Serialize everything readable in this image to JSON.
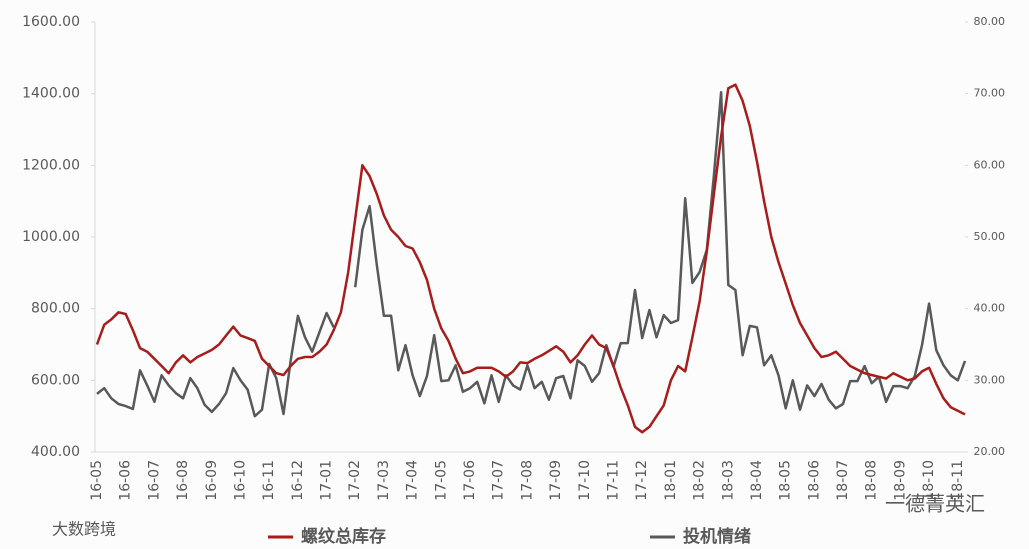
{
  "chart_data": {
    "type": "line",
    "categories": [
      "16-05",
      null,
      null,
      null,
      "16-06",
      null,
      null,
      null,
      "16-07",
      null,
      null,
      null,
      "16-08",
      null,
      null,
      null,
      "16-09",
      null,
      null,
      null,
      "16-10",
      null,
      null,
      null,
      "16-11",
      null,
      null,
      null,
      "16-12",
      null,
      null,
      null,
      "17-01",
      null,
      null,
      null,
      "17-02",
      null,
      null,
      null,
      "17-03",
      null,
      null,
      null,
      "17-04",
      null,
      null,
      null,
      "17-05",
      null,
      null,
      null,
      "17-06",
      null,
      null,
      null,
      "17-07",
      null,
      null,
      null,
      "17-08",
      null,
      null,
      null,
      "17-09",
      null,
      null,
      null,
      "17-10",
      null,
      null,
      null,
      "17-11",
      null,
      null,
      null,
      "17-12",
      null,
      null,
      null,
      "18-01",
      null,
      null,
      null,
      "18-02",
      null,
      null,
      null,
      "18-03",
      null,
      null,
      null,
      "18-04",
      null,
      null,
      null,
      "18-05",
      null,
      null,
      null,
      "18-06",
      null,
      null,
      null,
      "18-07",
      null,
      null,
      null,
      "18-08",
      null,
      null,
      null,
      "18-09",
      null,
      null,
      null,
      "18-10",
      null,
      null,
      null,
      "18-11",
      null
    ],
    "series": [
      {
        "name": "螺纹总库存",
        "color": "#a81c1c",
        "axis": "y",
        "values": [
          700,
          755,
          770,
          790,
          785,
          740,
          690,
          680,
          660,
          640,
          620,
          650,
          670,
          650,
          665,
          675,
          685,
          700,
          725,
          750,
          725,
          718,
          710,
          660,
          640,
          620,
          615,
          640,
          660,
          665,
          665,
          680,
          700,
          740,
          790,
          900,
          1050,
          1200,
          1170,
          1120,
          1060,
          1020,
          1000,
          975,
          968,
          930,
          880,
          800,
          745,
          710,
          660,
          620,
          625,
          635,
          635,
          635,
          625,
          610,
          625,
          650,
          648,
          660,
          670,
          682,
          695,
          680,
          650,
          670,
          700,
          725,
          700,
          690,
          640,
          580,
          530,
          470,
          455,
          470,
          500,
          530,
          600,
          640,
          625,
          720,
          820,
          960,
          1120,
          1280,
          1415,
          1425,
          1380,
          1310,
          1210,
          1100,
          1000,
          930,
          870,
          810,
          760,
          725,
          690,
          665,
          670,
          680,
          660,
          640,
          630,
          620,
          615,
          610,
          605,
          620,
          610,
          600,
          605,
          625,
          635,
          590,
          550,
          525,
          515,
          505
        ]
      },
      {
        "name": "投机情绪",
        "color": "#595959",
        "axis": "y2",
        "values": [
          28.1,
          28.9,
          27.5,
          26.7,
          26.4,
          26.0,
          31.4,
          29.3,
          27.0,
          30.7,
          29.3,
          28.2,
          27.5,
          30.3,
          28.9,
          26.6,
          25.6,
          26.7,
          28.2,
          31.7,
          30.0,
          28.7,
          25.0,
          25.9,
          32.3,
          30.3,
          25.3,
          32.8,
          39.0,
          36.0,
          34.0,
          36.7,
          39.4,
          37.4,
          null,
          null,
          43.0,
          51.0,
          54.3,
          46.1,
          39.0,
          39.0,
          31.4,
          34.9,
          30.7,
          27.8,
          30.6,
          36.3,
          29.9,
          30.0,
          32.1,
          28.4,
          28.9,
          29.8,
          26.8,
          30.7,
          27.0,
          30.7,
          29.3,
          28.7,
          32.1,
          28.9,
          29.8,
          27.3,
          30.3,
          30.6,
          27.5,
          32.8,
          32.0,
          29.8,
          31.0,
          34.9,
          31.9,
          35.2,
          35.2,
          42.6,
          35.9,
          39.8,
          36.0,
          39.1,
          38.0,
          38.4,
          55.4,
          43.6,
          45.1,
          48.2,
          58.6,
          70.2,
          43.3,
          42.6,
          33.5,
          37.6,
          37.4,
          32.1,
          33.5,
          30.7,
          26.1,
          30.0,
          25.9,
          29.3,
          27.8,
          29.5,
          27.3,
          26.1,
          26.7,
          29.9,
          29.9,
          32.0,
          29.6,
          30.5,
          27.0,
          29.2,
          29.2,
          28.9,
          30.6,
          34.9,
          40.7,
          34.2,
          32.1,
          30.7,
          30.0,
          32.7
        ]
      }
    ],
    "ylim": [
      400,
      1600
    ],
    "yticks": [
      {
        "value": 400,
        "label": "400.00"
      },
      {
        "value": 600,
        "label": "600.00"
      },
      {
        "value": 800,
        "label": "800.00"
      },
      {
        "value": 1000,
        "label": "1000.00"
      },
      {
        "value": 1200,
        "label": "1200.00"
      },
      {
        "value": 1400,
        "label": "1400.00"
      },
      {
        "value": 1600,
        "label": "1600.00"
      }
    ],
    "y2lim": [
      20,
      80
    ],
    "y2ticks": [
      {
        "value": 20,
        "label": "20.00"
      },
      {
        "value": 30,
        "label": "30.00"
      },
      {
        "value": 40,
        "label": "40.00"
      },
      {
        "value": 50,
        "label": "50.00"
      },
      {
        "value": 60,
        "label": "60.00"
      },
      {
        "value": 70,
        "label": "70.00"
      },
      {
        "value": 80,
        "label": "80.00"
      }
    ],
    "grid": false,
    "legend": "bottom",
    "watermarks": [
      "大数跨境",
      "一德菁英汇"
    ]
  }
}
